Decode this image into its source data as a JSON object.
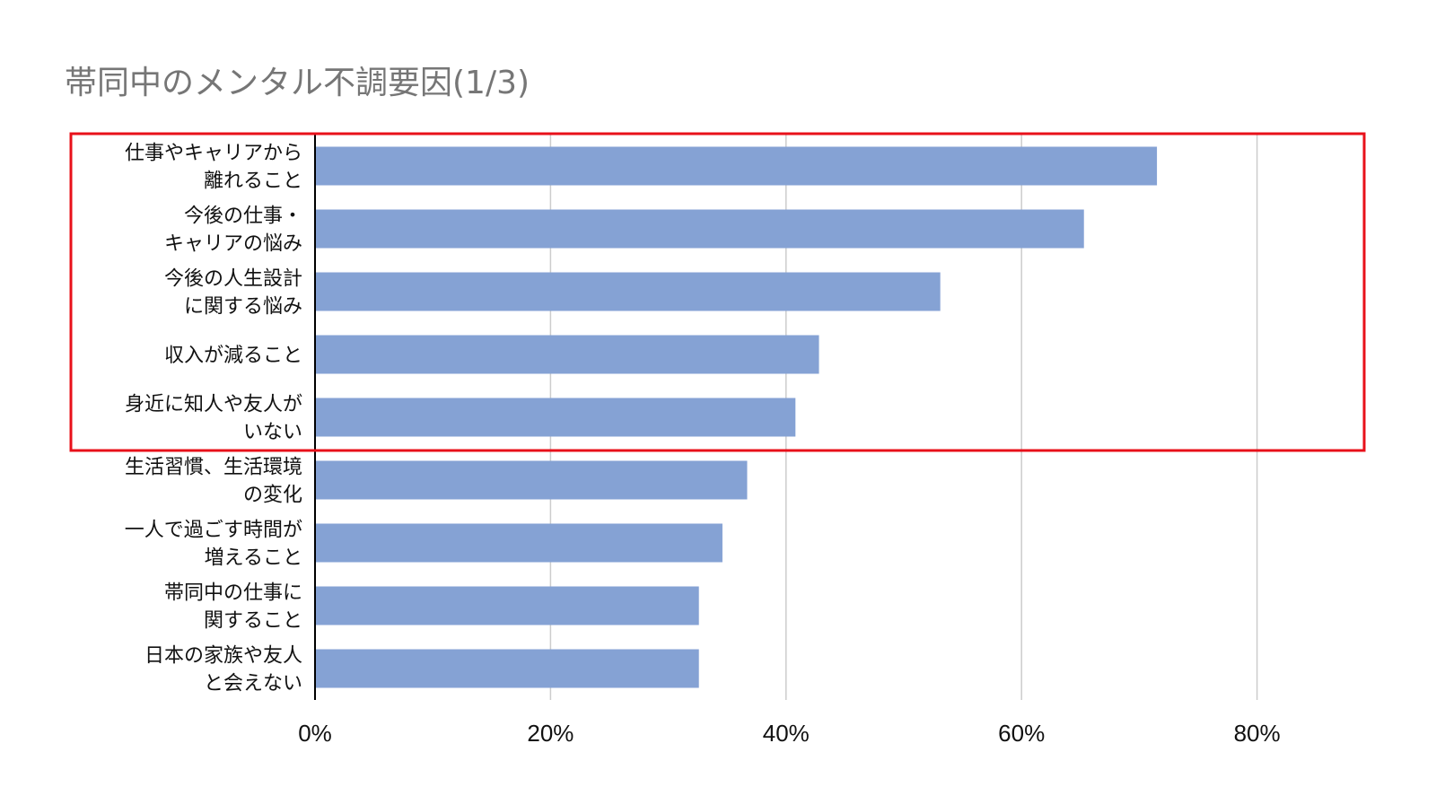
{
  "chart_data": {
    "type": "bar",
    "orientation": "horizontal",
    "title": "帯同中のメンタル不調要因(1/3)",
    "xlabel": "",
    "ylabel": "",
    "xlim": [
      0,
      0.88
    ],
    "ticks": [
      {
        "value": 0,
        "label": "0%"
      },
      {
        "value": 0.2,
        "label": "20%"
      },
      {
        "value": 0.4,
        "label": "40%"
      },
      {
        "value": 0.6,
        "label": "60%"
      },
      {
        "value": 0.8,
        "label": "80%"
      }
    ],
    "grid": true,
    "bar_color": "#85A2D4",
    "grid_color": "#CCCCCC",
    "highlight_color": "#E8101A",
    "highlight_rows": [
      0,
      4
    ],
    "categories": [
      [
        "仕事やキャリアから",
        "離れること"
      ],
      [
        "今後の仕事・",
        "キャリアの悩み"
      ],
      [
        "今後の人生設計",
        "に関する悩み"
      ],
      [
        "収入が減ること"
      ],
      [
        "身近に知人や友人が",
        "いない"
      ],
      [
        "生活習慣、生活環境",
        "の変化"
      ],
      [
        "一人で過ごす時間が",
        "増えること"
      ],
      [
        "帯同中の仕事に",
        "関すること"
      ],
      [
        "日本の家族や友人",
        "と会えない"
      ]
    ],
    "values": [
      0.715,
      0.653,
      0.531,
      0.428,
      0.408,
      0.367,
      0.346,
      0.326,
      0.326
    ]
  }
}
